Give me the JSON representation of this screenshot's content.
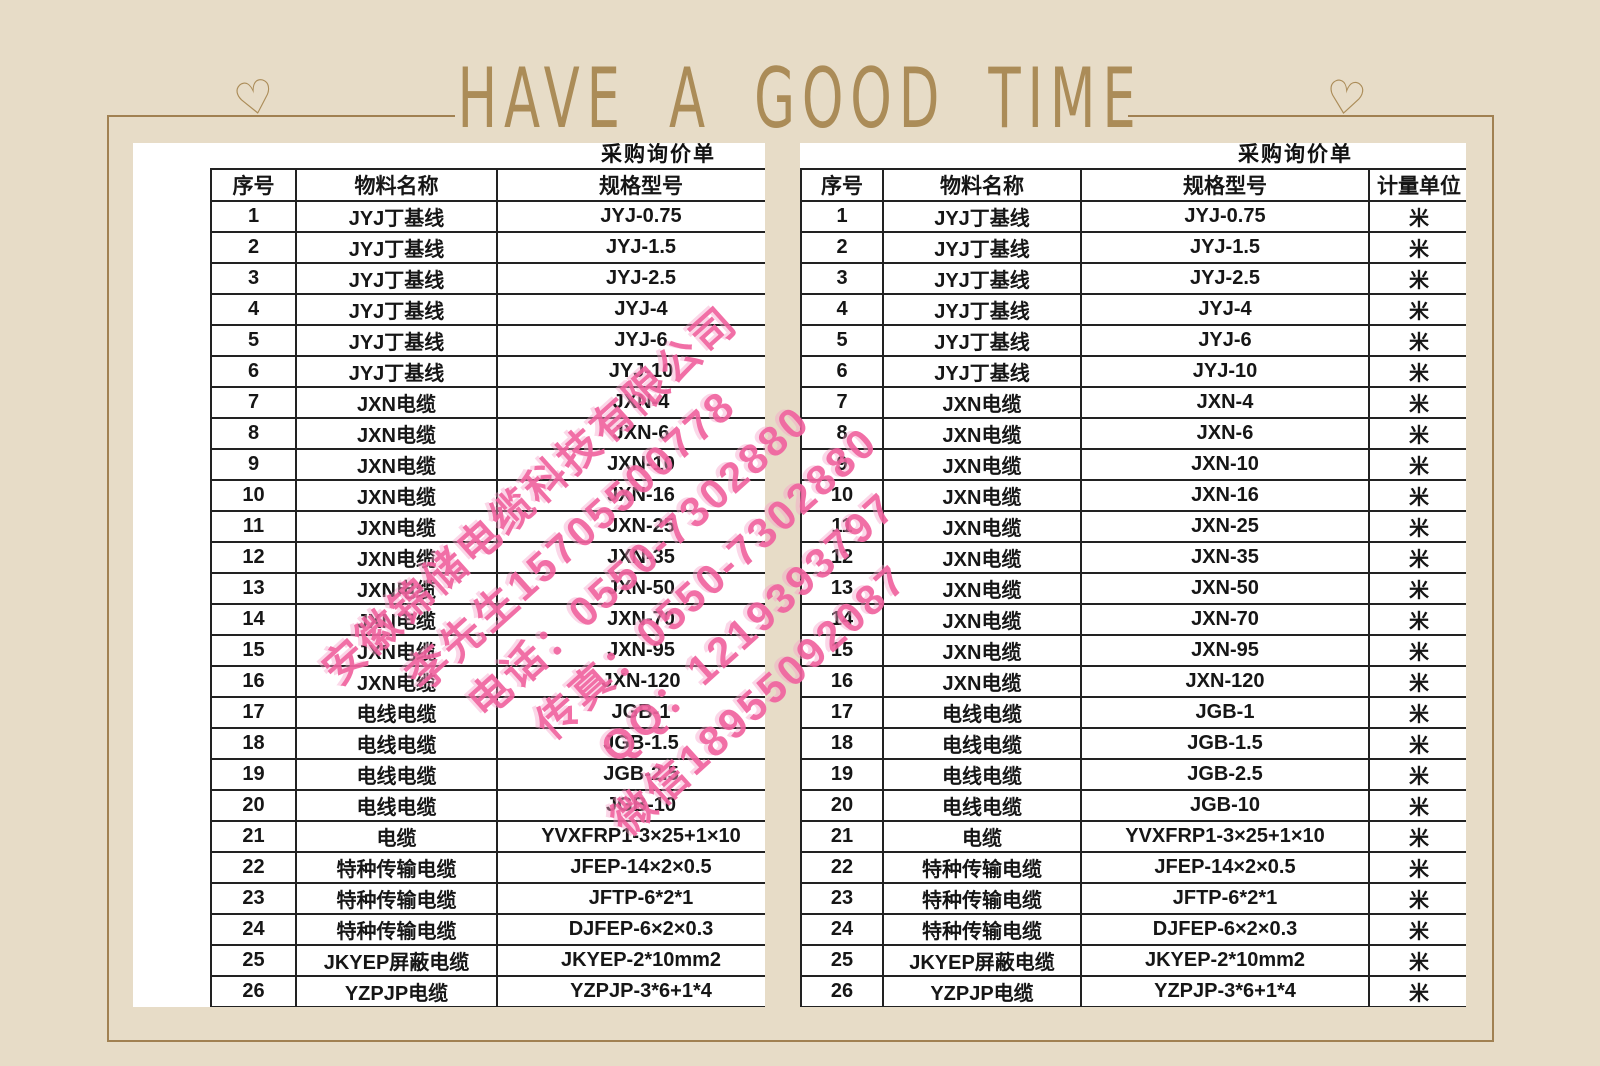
{
  "banner": {
    "text": "HAVE A GOOD TIME",
    "heart": "♡"
  },
  "table": {
    "title": "采购询价单",
    "headers": {
      "no": "序号",
      "name": "物料名称",
      "spec": "规格型号",
      "unit": "计量单位"
    },
    "rows": [
      {
        "no": "1",
        "name": "JYJ丁基线",
        "spec": "JYJ-0.75",
        "unit": "米"
      },
      {
        "no": "2",
        "name": "JYJ丁基线",
        "spec": "JYJ-1.5",
        "unit": "米"
      },
      {
        "no": "3",
        "name": "JYJ丁基线",
        "spec": "JYJ-2.5",
        "unit": "米"
      },
      {
        "no": "4",
        "name": "JYJ丁基线",
        "spec": "JYJ-4",
        "unit": "米"
      },
      {
        "no": "5",
        "name": "JYJ丁基线",
        "spec": "JYJ-6",
        "unit": "米"
      },
      {
        "no": "6",
        "name": "JYJ丁基线",
        "spec": "JYJ-10",
        "unit": "米"
      },
      {
        "no": "7",
        "name": "JXN电缆",
        "spec": "JXN-4",
        "unit": "米"
      },
      {
        "no": "8",
        "name": "JXN电缆",
        "spec": "JXN-6",
        "unit": "米"
      },
      {
        "no": "9",
        "name": "JXN电缆",
        "spec": "JXN-10",
        "unit": "米"
      },
      {
        "no": "10",
        "name": "JXN电缆",
        "spec": "JXN-16",
        "unit": "米"
      },
      {
        "no": "11",
        "name": "JXN电缆",
        "spec": "JXN-25",
        "unit": "米"
      },
      {
        "no": "12",
        "name": "JXN电缆",
        "spec": "JXN-35",
        "unit": "米"
      },
      {
        "no": "13",
        "name": "JXN电缆",
        "spec": "JXN-50",
        "unit": "米"
      },
      {
        "no": "14",
        "name": "JXN电缆",
        "spec": "JXN-70",
        "unit": "米"
      },
      {
        "no": "15",
        "name": "JXN电缆",
        "spec": "JXN-95",
        "unit": "米"
      },
      {
        "no": "16",
        "name": "JXN电缆",
        "spec": "JXN-120",
        "unit": "米"
      },
      {
        "no": "17",
        "name": "电线电缆",
        "spec": "JGB-1",
        "unit": "米"
      },
      {
        "no": "18",
        "name": "电线电缆",
        "spec": "JGB-1.5",
        "unit": "米"
      },
      {
        "no": "19",
        "name": "电线电缆",
        "spec": "JGB-2.5",
        "unit": "米"
      },
      {
        "no": "20",
        "name": "电线电缆",
        "spec": "JGB-10",
        "unit": "米"
      },
      {
        "no": "21",
        "name": "电缆",
        "spec": "YVXFRP1-3×25+1×10",
        "unit": "米"
      },
      {
        "no": "22",
        "name": "特种传输电缆",
        "spec": "JFEP-14×2×0.5",
        "unit": "米"
      },
      {
        "no": "23",
        "name": "特种传输电缆",
        "spec": "JFTP-6*2*1",
        "unit": "米"
      },
      {
        "no": "24",
        "name": "特种传输电缆",
        "spec": "DJFEP-6×2×0.3",
        "unit": "米"
      },
      {
        "no": "25",
        "name": "JKYEP屏蔽电缆",
        "spec": "JKYEP-2*10mm2",
        "unit": "米"
      },
      {
        "no": "26",
        "name": "YZPJP电缆",
        "spec": "YZPJP-3*6+1*4",
        "unit": "米"
      }
    ]
  },
  "watermark": {
    "lines": [
      "安徽锦储电缆科技有限公司",
      "李先生15705500778",
      "电话：0550-7302880",
      "传真：0550-7302880",
      "QQ：1219393797",
      "微信18955092087"
    ],
    "color": "#f0639f"
  },
  "colors": {
    "background": "#e7dcc7",
    "frame": "#a18152",
    "banner": "#ab8c58",
    "grid": "#222222",
    "watermark_pink": "#f0639f"
  }
}
